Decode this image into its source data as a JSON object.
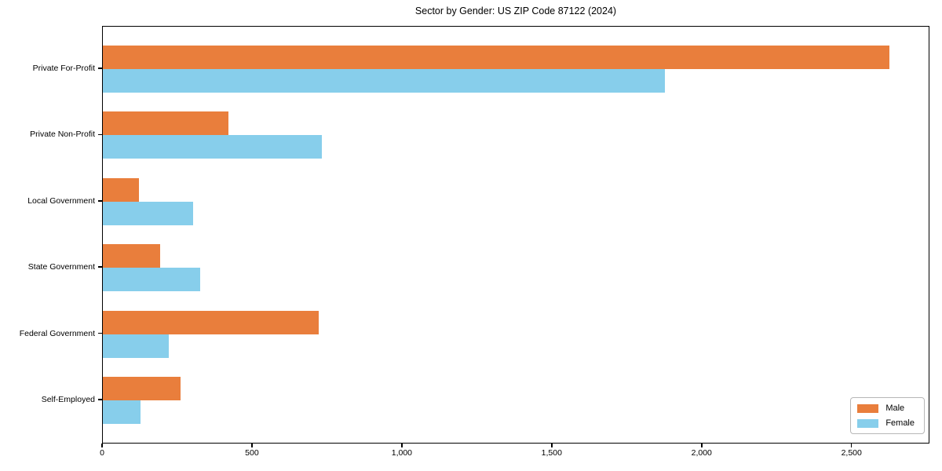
{
  "title": "Sector by Gender: US ZIP Code 87122 (2024)",
  "chart_data": {
    "type": "bar",
    "orientation": "horizontal",
    "title": "Sector by Gender: US ZIP Code 87122 (2024)",
    "categories": [
      "Private For-Profit",
      "Private Non-Profit",
      "Local Government",
      "State Government",
      "Federal Government",
      "Self-Employed"
    ],
    "series": [
      {
        "name": "Male",
        "color": "#E97E3C",
        "values": [
          2625,
          420,
          120,
          190,
          720,
          260
        ]
      },
      {
        "name": "Female",
        "color": "#87CEEB",
        "values": [
          1875,
          730,
          300,
          325,
          220,
          125
        ]
      }
    ],
    "xlabel": "",
    "ylabel": "",
    "xlim": [
      0,
      2760
    ],
    "xticks": [
      0,
      500,
      1000,
      1500,
      2000,
      2500
    ],
    "xtick_labels": [
      "0",
      "500",
      "1,000",
      "1,500",
      "2,000",
      "2,500"
    ],
    "grid": false,
    "legend_position": "lower right"
  },
  "legend": {
    "items": [
      {
        "label": "Male",
        "color": "#E97E3C"
      },
      {
        "label": "Female",
        "color": "#87CEEB"
      }
    ]
  }
}
